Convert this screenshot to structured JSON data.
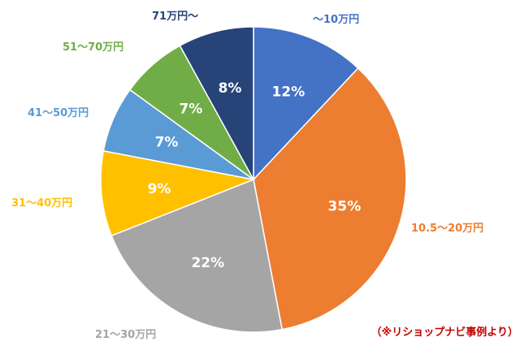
{
  "chart_data": {
    "type": "pie",
    "categories": [
      "～10万円",
      "10.5～20万円",
      "21～30万円",
      "31～40万円",
      "41～50万円",
      "51～70万円",
      "71万円～"
    ],
    "values": [
      12,
      35,
      22,
      9,
      7,
      7,
      8
    ],
    "value_labels": [
      "12%",
      "35%",
      "22%",
      "9%",
      "7%",
      "7%",
      "8%"
    ],
    "colors": [
      "#4472C4",
      "#ED7D31",
      "#A5A5A5",
      "#FFC000",
      "#5B9BD5",
      "#70AD47",
      "#264478"
    ],
    "start": "12 o'clock",
    "direction": "clockwise",
    "legend": "none (category labels placed outside slices)"
  },
  "annotation": {
    "text": "（※リショップナビ事例より）",
    "color": "#C00000"
  }
}
